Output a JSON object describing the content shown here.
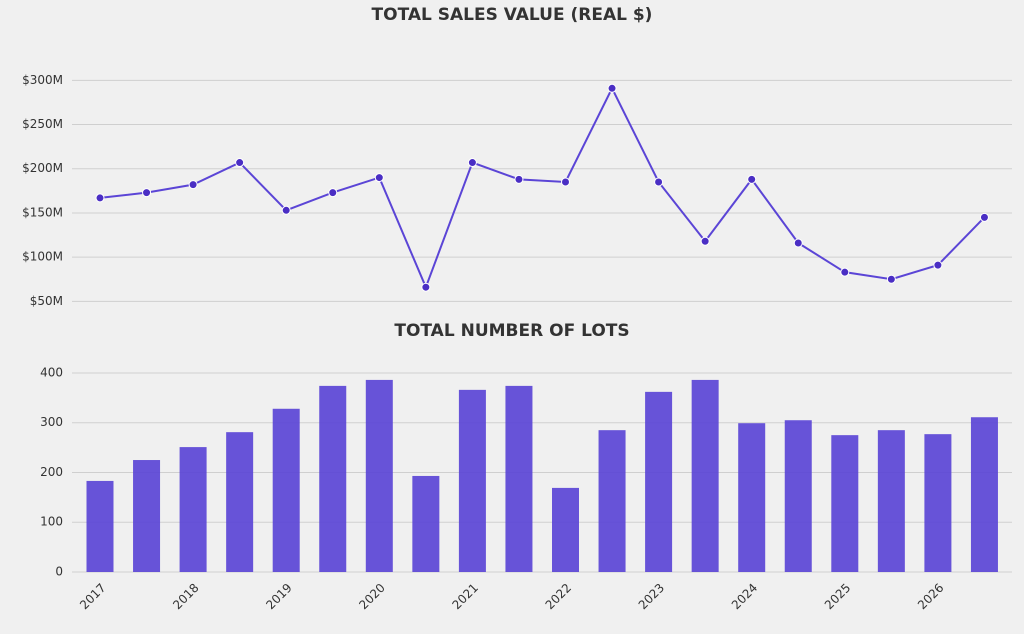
{
  "chart_data": [
    {
      "type": "line",
      "title": "TOTAL SALES VALUE (REAL $)",
      "series": [
        {
          "name": "Total sales value",
          "color": "#5b45d6",
          "values": [
            167,
            173,
            182,
            207,
            153,
            173,
            190,
            66,
            207,
            188,
            185,
            291,
            185,
            118,
            188,
            116,
            83,
            75,
            91,
            145
          ]
        }
      ],
      "ylim": [
        47,
        323
      ],
      "yticks": [
        {
          "value": 50,
          "label": "$50M"
        },
        {
          "value": 100,
          "label": "$100M"
        },
        {
          "value": 150,
          "label": "$150M"
        },
        {
          "value": 200,
          "label": "$200M"
        },
        {
          "value": 250,
          "label": "$250M"
        },
        {
          "value": 300,
          "label": "$300M"
        }
      ],
      "grid": true
    },
    {
      "type": "bar",
      "title": "TOTAL NUMBER OF LOTS",
      "categories": [
        "2017",
        null,
        "2018",
        null,
        "2019",
        null,
        "2020",
        null,
        "2021",
        null,
        "2022",
        null,
        "2023",
        null,
        "2024",
        null,
        "2025",
        null,
        "2026",
        null
      ],
      "series": [
        {
          "name": "Total number of lots",
          "color": "#5b45d6",
          "values": [
            183,
            225,
            251,
            281,
            328,
            374,
            386,
            193,
            366,
            374,
            169,
            285,
            362,
            386,
            299,
            305,
            275,
            285,
            277,
            311
          ]
        }
      ],
      "ylim": [
        0,
        422
      ],
      "yticks": [
        0,
        100,
        200,
        300,
        400
      ],
      "grid": true
    }
  ]
}
